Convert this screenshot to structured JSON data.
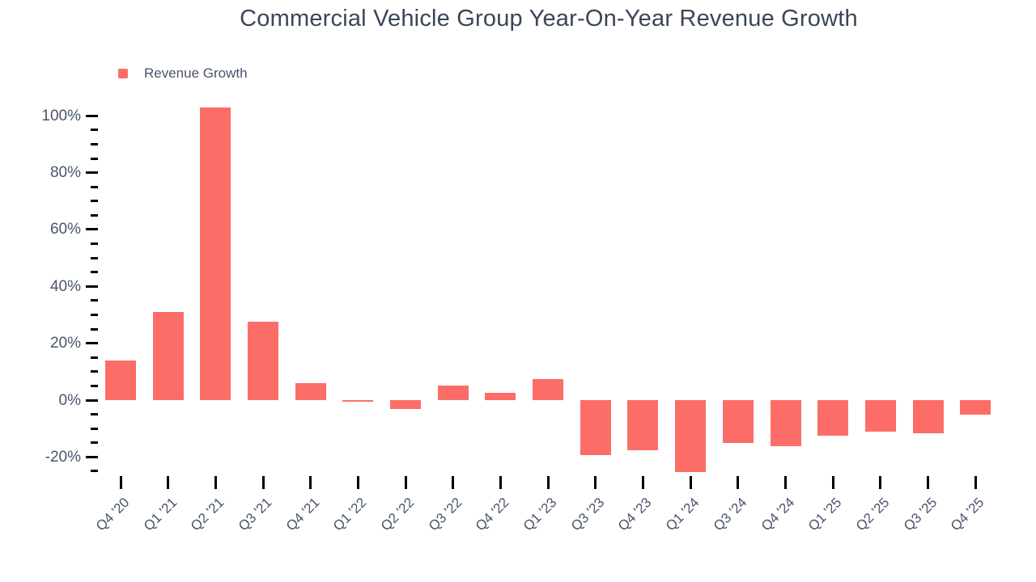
{
  "page": {
    "background": "#ffffff"
  },
  "chart_data": {
    "type": "bar",
    "title": "Commercial Vehicle Group Year-On-Year Revenue Growth",
    "xlabel": "",
    "ylabel": "",
    "legend": [
      {
        "label": "Revenue Growth",
        "color": "#fc6d68"
      }
    ],
    "categories": [
      "Q4 '20",
      "Q1 '21",
      "Q2 '21",
      "Q3 '21",
      "Q4 '21",
      "Q1 '22",
      "Q2 '22",
      "Q3 '22",
      "Q4 '22",
      "Q1 '23",
      "Q3 '23",
      "Q4 '23",
      "Q1 '24",
      "Q3 '24",
      "Q4 '24",
      "Q1 '25",
      "Q2 '25",
      "Q3 '25",
      "Q4 '25"
    ],
    "series": [
      {
        "name": "Revenue Growth",
        "values": [
          14,
          31,
          103,
          27.5,
          6,
          -0.5,
          -3,
          5,
          2.5,
          7.3,
          -19.2,
          -17.5,
          -25.4,
          -15.1,
          -16.1,
          -12.6,
          -11.2,
          -11.6,
          -5.2
        ]
      }
    ],
    "axis": {
      "yticks": [
        100,
        80,
        60,
        40,
        20,
        0,
        -20
      ],
      "ytick_labels": [
        "100%",
        "80%",
        "60%",
        "40%",
        "20%",
        "0%",
        "-20%"
      ],
      "major_step": 20,
      "minor_step": 5,
      "tick_max": 100,
      "tick_min": -25,
      "ylim": [
        -28,
        105
      ],
      "grid": false,
      "legend_position": "top-left"
    },
    "colors": {
      "bar": "#fc6d68",
      "title": "#3a4657",
      "axis_label": "#4a556b",
      "tick": "#000000"
    }
  }
}
